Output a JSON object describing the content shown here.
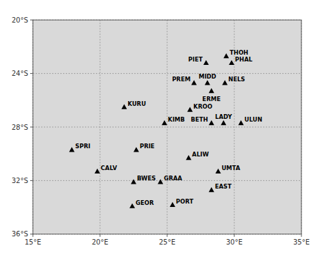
{
  "chart_data": {
    "type": "scatter",
    "x": [
      29.4,
      27.9,
      29.8,
      27.0,
      28.0,
      29.3,
      28.3,
      21.8,
      26.7,
      24.8,
      28.3,
      29.2,
      30.5,
      17.9,
      22.7,
      26.6,
      19.8,
      28.8,
      22.5,
      24.5,
      28.3,
      22.4,
      25.4
    ],
    "values": [
      -22.7,
      -23.2,
      -23.2,
      -24.7,
      -24.7,
      -24.7,
      -25.3,
      -26.5,
      -26.7,
      -27.7,
      -27.7,
      -27.7,
      -27.7,
      -29.7,
      -29.7,
      -30.3,
      -31.3,
      -31.3,
      -32.1,
      -32.1,
      -32.7,
      -33.9,
      -33.8
    ],
    "labels": [
      "THOH",
      "PIET",
      "PHAL",
      "PREM",
      "MIDD",
      "NELS",
      "ERME",
      "KURU",
      "KROO",
      "KIMB",
      "BETH",
      "LADY",
      "ULUN",
      "SPRI",
      "PRIE",
      "ALIW",
      "CALV",
      "UMTA",
      "BWES",
      "GRAA",
      "EAST",
      "GEOR",
      "PORT"
    ],
    "color": "#000000",
    "marker": "triangle",
    "xlim": [
      15,
      35
    ],
    "ylim": [
      -36,
      -20
    ],
    "xticks": [
      {
        "value": 15,
        "label": "15°E"
      },
      {
        "value": 20,
        "label": "20°E"
      },
      {
        "value": 25,
        "label": "25°E"
      },
      {
        "value": 30,
        "label": "30°E"
      },
      {
        "value": 35,
        "label": "35°E"
      }
    ],
    "yticks": [
      {
        "value": -20,
        "label": "20°S"
      },
      {
        "value": -24,
        "label": "24°S"
      },
      {
        "value": -28,
        "label": "28°S"
      },
      {
        "value": -32,
        "label": "32°S"
      },
      {
        "value": -36,
        "label": "36°S"
      }
    ],
    "grid": true
  }
}
